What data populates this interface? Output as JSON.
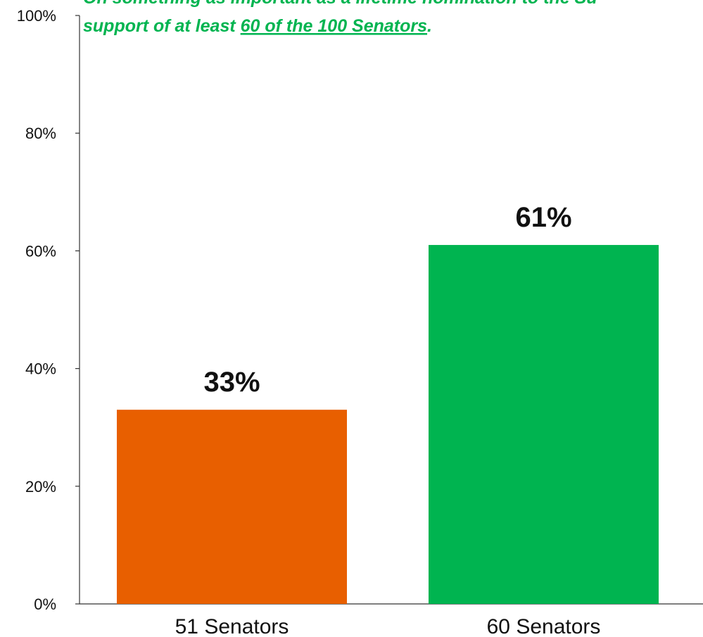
{
  "colors": {
    "axis": "#333333",
    "text": "#111111",
    "accent_green": "#00b450"
  },
  "chart_data": {
    "type": "bar",
    "categories": [
      "51 Senators",
      "60 Senators"
    ],
    "values": [
      33,
      61
    ],
    "value_labels": [
      "33%",
      "61%"
    ],
    "bar_colors": [
      "#e85f00",
      "#00b450"
    ],
    "ylim": [
      0,
      100
    ],
    "yticks": [
      0,
      20,
      40,
      60,
      80,
      100
    ],
    "ytick_labels": [
      "0%",
      "20%",
      "40%",
      "60%",
      "80%",
      "100%"
    ],
    "grid": false,
    "legend": "none",
    "annotation": {
      "line1": "On something as important as a lifetime nomination to the Su",
      "line2_prefix": "support of at least ",
      "line2_underlined": "60 of the 100 Senators",
      "line2_suffix": "."
    }
  }
}
